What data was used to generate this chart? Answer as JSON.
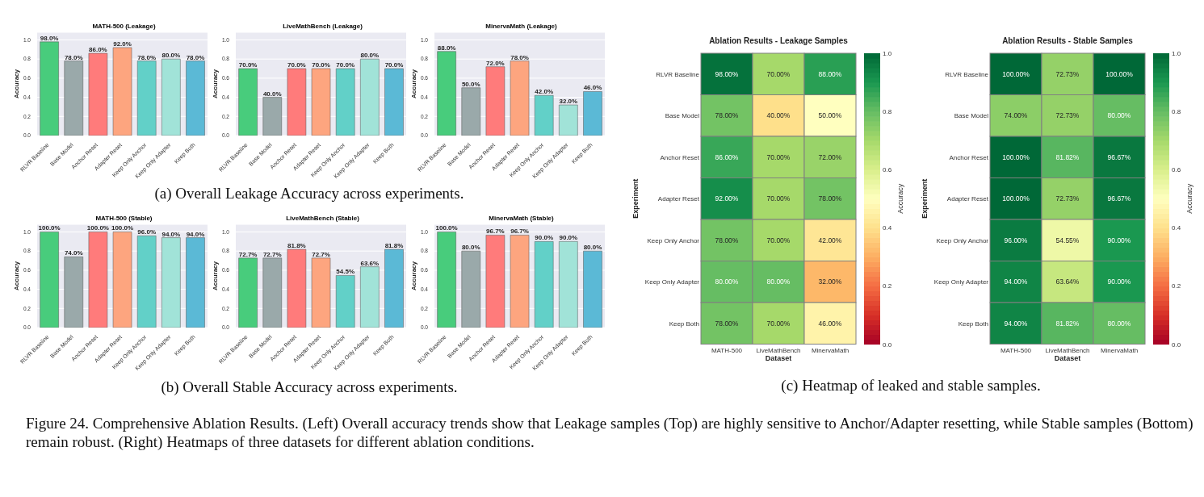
{
  "chart_data": [
    {
      "type": "bar",
      "title": "MATH-500 (Leakage)",
      "ylabel": "Accuracy",
      "categories": [
        "RLVR Baseline",
        "Base Model",
        "Anchor Reset",
        "Adapter Reset",
        "Keep Only Anchor",
        "Keep Only Adapter",
        "Keep Both"
      ],
      "values": [
        0.98,
        0.78,
        0.86,
        0.92,
        0.78,
        0.8,
        0.78
      ],
      "colors": [
        "#48cc7c",
        "#9aa9aa",
        "#ff7b7b",
        "#fda57f",
        "#62d0c8",
        "#a1e3d8",
        "#5bb9d6"
      ],
      "value_labels": [
        "98.0%",
        "78.0%",
        "86.0%",
        "92.0%",
        "78.0%",
        "80.0%",
        "78.0%"
      ],
      "ylim": [
        0,
        1.08
      ],
      "yticks": [
        {
          "value": 0,
          "label": "0.0"
        },
        {
          "value": 0.2,
          "label": "0.2"
        },
        {
          "value": 0.4,
          "label": "0.4"
        },
        {
          "value": 0.6,
          "label": "0.6"
        },
        {
          "value": 0.8,
          "label": "0.8"
        },
        {
          "value": 1,
          "label": "1.0"
        }
      ],
      "grid": "y"
    },
    {
      "type": "bar",
      "title": "LiveMathBench (Leakage)",
      "ylabel": "Accuracy",
      "categories": [
        "RLVR Baseline",
        "Base Model",
        "Anchor Reset",
        "Adapter Reset",
        "Keep Only Anchor",
        "Keep Only Adapter",
        "Keep Both"
      ],
      "values": [
        0.7,
        0.4,
        0.7,
        0.7,
        0.7,
        0.8,
        0.7
      ],
      "colors": [
        "#48cc7c",
        "#9aa9aa",
        "#ff7b7b",
        "#fda57f",
        "#62d0c8",
        "#a1e3d8",
        "#5bb9d6"
      ],
      "value_labels": [
        "70.0%",
        "40.0%",
        "70.0%",
        "70.0%",
        "70.0%",
        "80.0%",
        "70.0%"
      ],
      "ylim": [
        0,
        1.08
      ],
      "yticks": [
        {
          "value": 0,
          "label": "0.0"
        },
        {
          "value": 0.2,
          "label": "0.2"
        },
        {
          "value": 0.4,
          "label": "0.4"
        },
        {
          "value": 0.6,
          "label": "0.6"
        },
        {
          "value": 0.8,
          "label": "0.8"
        },
        {
          "value": 1,
          "label": "1.0"
        }
      ],
      "grid": "y",
      "annotations": [
        "(a) Overall Leakage Accuracy across experiments."
      ]
    },
    {
      "type": "bar",
      "title": "MinervaMath (Leakage)",
      "ylabel": "Accuracy",
      "categories": [
        "RLVR Baseline",
        "Base Model",
        "Anchor Reset",
        "Adapter Reset",
        "Keep Only Anchor",
        "Keep Only Adapter",
        "Keep Both"
      ],
      "values": [
        0.88,
        0.5,
        0.72,
        0.78,
        0.42,
        0.32,
        0.46
      ],
      "colors": [
        "#48cc7c",
        "#9aa9aa",
        "#ff7b7b",
        "#fda57f",
        "#62d0c8",
        "#a1e3d8",
        "#5bb9d6"
      ],
      "value_labels": [
        "88.0%",
        "50.0%",
        "72.0%",
        "78.0%",
        "42.0%",
        "32.0%",
        "46.0%"
      ],
      "ylim": [
        0,
        1.08
      ],
      "yticks": [
        {
          "value": 0,
          "label": "0.0"
        },
        {
          "value": 0.2,
          "label": "0.2"
        },
        {
          "value": 0.4,
          "label": "0.4"
        },
        {
          "value": 0.6,
          "label": "0.6"
        },
        {
          "value": 0.8,
          "label": "0.8"
        },
        {
          "value": 1,
          "label": "1.0"
        }
      ],
      "grid": "y"
    },
    {
      "type": "bar",
      "title": "MATH-500 (Stable)",
      "ylabel": "Accuracy",
      "categories": [
        "RLVR Baseline",
        "Base Model",
        "Anchor Reset",
        "Adapter Reset",
        "Keep Only Anchor",
        "Keep Only Adapter",
        "Keep Both"
      ],
      "values": [
        1.0,
        0.74,
        1.0,
        1.0,
        0.96,
        0.94,
        0.94
      ],
      "colors": [
        "#48cc7c",
        "#9aa9aa",
        "#ff7b7b",
        "#fda57f",
        "#62d0c8",
        "#a1e3d8",
        "#5bb9d6"
      ],
      "value_labels": [
        "100.0%",
        "74.0%",
        "100.0%",
        "100.0%",
        "96.0%",
        "94.0%",
        "94.0%"
      ],
      "ylim": [
        0,
        1.08
      ],
      "yticks": [
        {
          "value": 0,
          "label": "0.0"
        },
        {
          "value": 0.2,
          "label": "0.2"
        },
        {
          "value": 0.4,
          "label": "0.4"
        },
        {
          "value": 0.6,
          "label": "0.6"
        },
        {
          "value": 0.8,
          "label": "0.8"
        },
        {
          "value": 1,
          "label": "1.0"
        }
      ],
      "grid": "y"
    },
    {
      "type": "bar",
      "title": "LiveMathBench (Stable)",
      "ylabel": "Accuracy",
      "categories": [
        "RLVR Baseline",
        "Base Model",
        "Anchor Reset",
        "Adapter Reset",
        "Keep Only Anchor",
        "Keep Only Adapter",
        "Keep Both"
      ],
      "values": [
        0.727,
        0.727,
        0.818,
        0.727,
        0.545,
        0.636,
        0.818
      ],
      "colors": [
        "#48cc7c",
        "#9aa9aa",
        "#ff7b7b",
        "#fda57f",
        "#62d0c8",
        "#a1e3d8",
        "#5bb9d6"
      ],
      "value_labels": [
        "72.7%",
        "72.7%",
        "81.8%",
        "72.7%",
        "54.5%",
        "63.6%",
        "81.8%"
      ],
      "ylim": [
        0,
        1.08
      ],
      "yticks": [
        {
          "value": 0,
          "label": "0.0"
        },
        {
          "value": 0.2,
          "label": "0.2"
        },
        {
          "value": 0.4,
          "label": "0.4"
        },
        {
          "value": 0.6,
          "label": "0.6"
        },
        {
          "value": 0.8,
          "label": "0.8"
        },
        {
          "value": 1,
          "label": "1.0"
        }
      ],
      "grid": "y",
      "annotations": [
        "(b) Overall Stable Accuracy across experiments."
      ]
    },
    {
      "type": "bar",
      "title": "MinervaMath (Stable)",
      "ylabel": "Accuracy",
      "categories": [
        "RLVR Baseline",
        "Base Model",
        "Anchor Reset",
        "Adapter Reset",
        "Keep Only Anchor",
        "Keep Only Adapter",
        "Keep Both"
      ],
      "values": [
        1.0,
        0.8,
        0.967,
        0.967,
        0.9,
        0.9,
        0.8
      ],
      "colors": [
        "#48cc7c",
        "#9aa9aa",
        "#ff7b7b",
        "#fda57f",
        "#62d0c8",
        "#a1e3d8",
        "#5bb9d6"
      ],
      "value_labels": [
        "100.0%",
        "80.0%",
        "96.7%",
        "96.7%",
        "90.0%",
        "90.0%",
        "80.0%"
      ],
      "ylim": [
        0,
        1.08
      ],
      "yticks": [
        {
          "value": 0,
          "label": "0.0"
        },
        {
          "value": 0.2,
          "label": "0.2"
        },
        {
          "value": 0.4,
          "label": "0.4"
        },
        {
          "value": 0.6,
          "label": "0.6"
        },
        {
          "value": 0.8,
          "label": "0.8"
        },
        {
          "value": 1,
          "label": "1.0"
        }
      ],
      "grid": "y"
    },
    {
      "type": "heatmap",
      "title": "Ablation Results - Leakage Samples",
      "xlabel": "Dataset",
      "ylabel": "Experiment",
      "clabel": "Accuracy",
      "categories": [
        "MATH-500",
        "LiveMathBench",
        "MinervaMath"
      ],
      "y_categories": [
        "RLVR Baseline",
        "Base Model",
        "Anchor Reset",
        "Adapter Reset",
        "Keep Only Anchor",
        "Keep Only Adapter",
        "Keep Both"
      ],
      "cells": [
        [
          0.98,
          0.7,
          0.88
        ],
        [
          0.78,
          0.4,
          0.5
        ],
        [
          0.86,
          0.7,
          0.72
        ],
        [
          0.92,
          0.7,
          0.78
        ],
        [
          0.78,
          0.7,
          0.42
        ],
        [
          0.8,
          0.8,
          0.32
        ],
        [
          0.78,
          0.7,
          0.46
        ]
      ],
      "cell_labels": [
        [
          "98.00%",
          "70.00%",
          "88.00%"
        ],
        [
          "78.00%",
          "40.00%",
          "50.00%"
        ],
        [
          "86.00%",
          "70.00%",
          "72.00%"
        ],
        [
          "92.00%",
          "70.00%",
          "78.00%"
        ],
        [
          "78.00%",
          "70.00%",
          "42.00%"
        ],
        [
          "80.00%",
          "80.00%",
          "32.00%"
        ],
        [
          "78.00%",
          "70.00%",
          "46.00%"
        ]
      ],
      "clim": [
        0,
        1
      ],
      "cticks": [
        {
          "value": 0,
          "label": "0.0"
        },
        {
          "value": 0.2,
          "label": "0.2"
        },
        {
          "value": 0.4,
          "label": "0.4"
        },
        {
          "value": 0.6,
          "label": "0.6"
        },
        {
          "value": 0.8,
          "label": "0.8"
        },
        {
          "value": 1,
          "label": "1.0"
        }
      ],
      "annotations": [
        "(c) Heatmap of leaked and stable samples."
      ]
    },
    {
      "type": "heatmap",
      "title": "Ablation Results - Stable Samples",
      "xlabel": "Dataset",
      "ylabel": "Experiment",
      "clabel": "Accuracy",
      "categories": [
        "MATH-500",
        "LiveMathBench",
        "MinervaMath"
      ],
      "y_categories": [
        "RLVR Baseline",
        "Base Model",
        "Anchor Reset",
        "Adapter Reset",
        "Keep Only Anchor",
        "Keep Only Adapter",
        "Keep Both"
      ],
      "cells": [
        [
          1.0,
          0.7273,
          1.0
        ],
        [
          0.74,
          0.7273,
          0.8
        ],
        [
          1.0,
          0.8182,
          0.9667
        ],
        [
          1.0,
          0.7273,
          0.9667
        ],
        [
          0.96,
          0.5455,
          0.9
        ],
        [
          0.94,
          0.6364,
          0.9
        ],
        [
          0.94,
          0.8182,
          0.8
        ]
      ],
      "cell_labels": [
        [
          "100.00%",
          "72.73%",
          "100.00%"
        ],
        [
          "74.00%",
          "72.73%",
          "80.00%"
        ],
        [
          "100.00%",
          "81.82%",
          "96.67%"
        ],
        [
          "100.00%",
          "72.73%",
          "96.67%"
        ],
        [
          "96.00%",
          "54.55%",
          "90.00%"
        ],
        [
          "94.00%",
          "63.64%",
          "90.00%"
        ],
        [
          "94.00%",
          "81.82%",
          "80.00%"
        ]
      ],
      "clim": [
        0,
        1
      ],
      "cticks": [
        {
          "value": 0,
          "label": "0.0"
        },
        {
          "value": 0.2,
          "label": "0.2"
        },
        {
          "value": 0.4,
          "label": "0.4"
        },
        {
          "value": 0.6,
          "label": "0.6"
        },
        {
          "value": 0.8,
          "label": "0.8"
        },
        {
          "value": 1,
          "label": "1.0"
        }
      ],
      "annotations": [
        "Figure 24. Comprehensive Ablation Results. (Left) Overall accuracy trends show that Leakage samples (Top) are highly sensitive to Anchor/Adapter resetting, while Stable samples (Bottom) remain robust. (Right) Heatmaps of three datasets for different ablation conditions."
      ]
    }
  ]
}
